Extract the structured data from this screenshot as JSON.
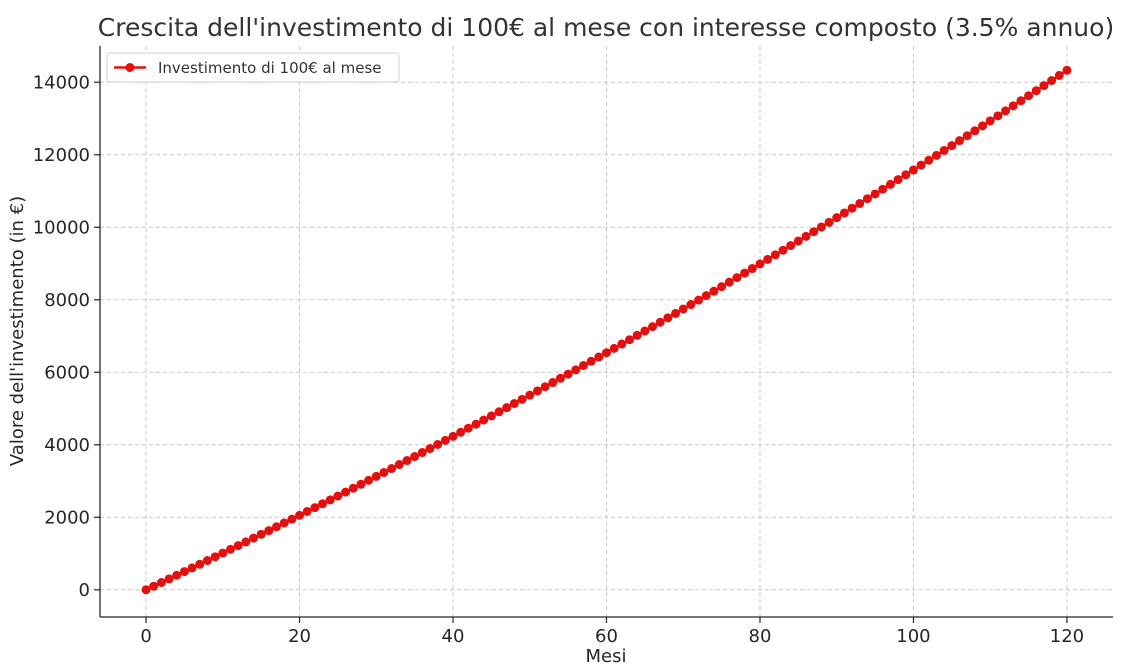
{
  "chart_data": {
    "type": "line",
    "title": "Crescita dell'investimento di 100€ al mese con interesse composto (3.5% annuo)",
    "xlabel": "Mesi",
    "ylabel": "Valore dell'investimento (in €)",
    "xlim": [
      -6,
      126
    ],
    "ylim": [
      -750,
      15000
    ],
    "xticks": [
      0,
      20,
      40,
      60,
      80,
      100,
      120
    ],
    "yticks": [
      0,
      2000,
      4000,
      6000,
      8000,
      10000,
      12000,
      14000
    ],
    "grid": true,
    "legend_position": "top-left",
    "monthly_contribution": 100,
    "annual_rate": 0.035,
    "months": 120,
    "series": [
      {
        "name": "Investimento di 100€ al mese",
        "color": "#e41010",
        "marker": "circle",
        "x_start": 0,
        "x_end": 120,
        "x_step": 1,
        "y_start": 0,
        "y_end": 14330
      }
    ]
  }
}
